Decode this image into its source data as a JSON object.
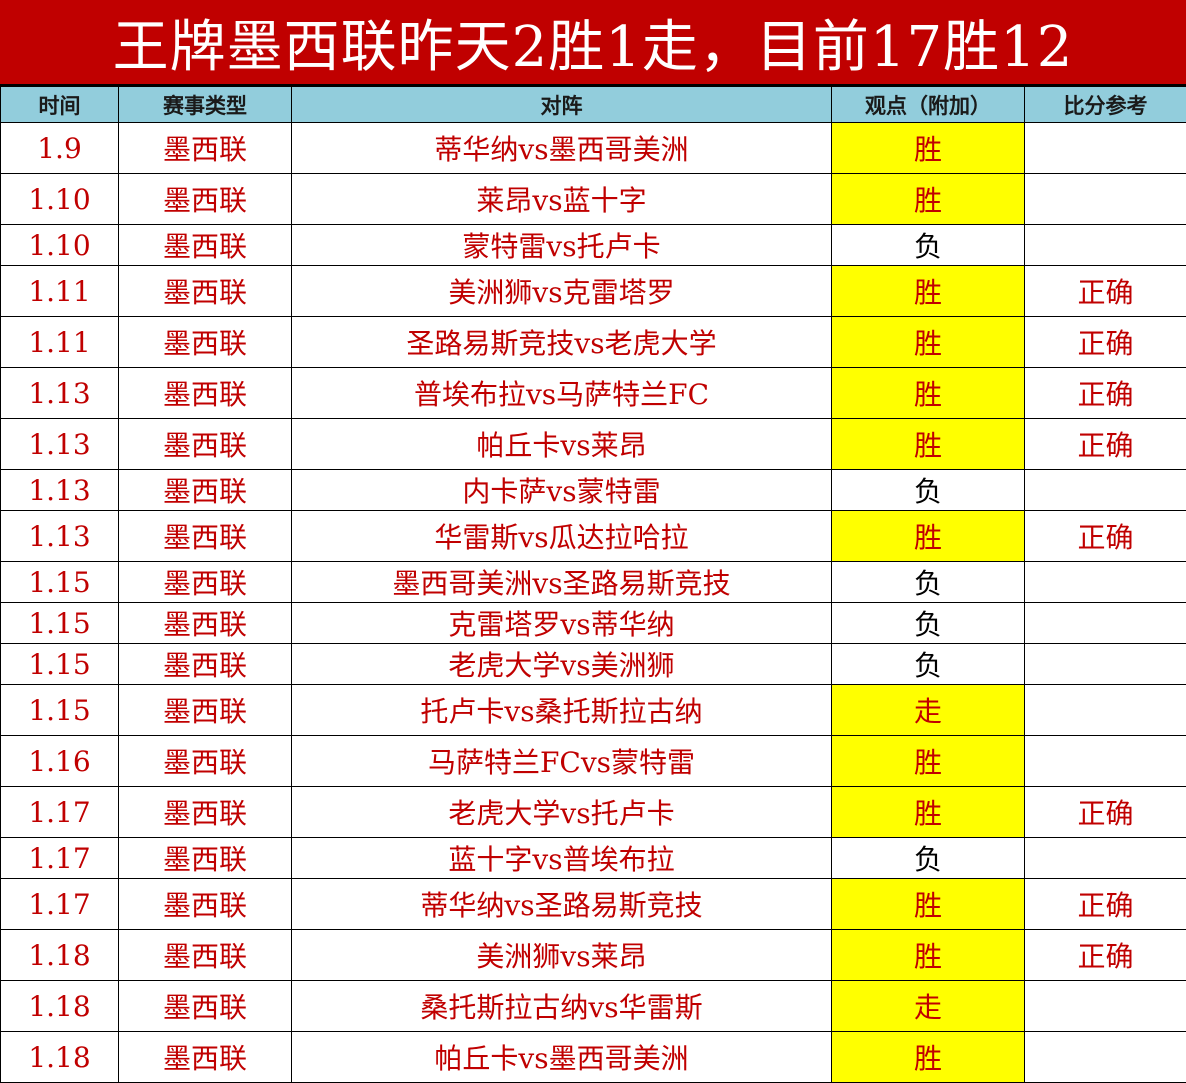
{
  "title": "王牌墨西联昨天2胜1走，目前17胜12",
  "headers": [
    "时间",
    "赛事类型",
    "对阵",
    "观点（附加）",
    "比分参考"
  ],
  "colors": {
    "title_bg": "#c00000",
    "header_bg": "#92cddc",
    "highlight": "#ffff00",
    "text": "#c00000"
  },
  "rows": [
    {
      "date": "1.9",
      "league": "墨西联",
      "match": "蒂华纳vs墨西哥美洲",
      "pick": "胜",
      "ref": ""
    },
    {
      "date": "1.10",
      "league": "墨西联",
      "match": "莱昂vs蓝十字",
      "pick": "胜",
      "ref": ""
    },
    {
      "date": "1.10",
      "league": "墨西联",
      "match": "蒙特雷vs托卢卡",
      "pick": "负",
      "ref": ""
    },
    {
      "date": "1.11",
      "league": "墨西联",
      "match": "美洲狮vs克雷塔罗",
      "pick": "胜",
      "ref": "正确"
    },
    {
      "date": "1.11",
      "league": "墨西联",
      "match": "圣路易斯竞技vs老虎大学",
      "pick": "胜",
      "ref": "正确"
    },
    {
      "date": "1.13",
      "league": "墨西联",
      "match": "普埃布拉vs马萨特兰FC",
      "pick": "胜",
      "ref": "正确"
    },
    {
      "date": "1.13",
      "league": "墨西联",
      "match": "帕丘卡vs莱昂",
      "pick": "胜",
      "ref": "正确"
    },
    {
      "date": "1.13",
      "league": "墨西联",
      "match": "内卡萨vs蒙特雷",
      "pick": "负",
      "ref": ""
    },
    {
      "date": "1.13",
      "league": "墨西联",
      "match": "华雷斯vs瓜达拉哈拉",
      "pick": "胜",
      "ref": "正确"
    },
    {
      "date": "1.15",
      "league": "墨西联",
      "match": "墨西哥美洲vs圣路易斯竞技",
      "pick": "负",
      "ref": ""
    },
    {
      "date": "1.15",
      "league": "墨西联",
      "match": "克雷塔罗vs蒂华纳",
      "pick": "负",
      "ref": ""
    },
    {
      "date": "1.15",
      "league": "墨西联",
      "match": "老虎大学vs美洲狮",
      "pick": "负",
      "ref": ""
    },
    {
      "date": "1.15",
      "league": "墨西联",
      "match": "托卢卡vs桑托斯拉古纳",
      "pick": "走",
      "ref": ""
    },
    {
      "date": "1.16",
      "league": "墨西联",
      "match": "马萨特兰FCvs蒙特雷",
      "pick": "胜",
      "ref": ""
    },
    {
      "date": "1.17",
      "league": "墨西联",
      "match": "老虎大学vs托卢卡",
      "pick": "胜",
      "ref": "正确"
    },
    {
      "date": "1.17",
      "league": "墨西联",
      "match": "蓝十字vs普埃布拉",
      "pick": "负",
      "ref": ""
    },
    {
      "date": "1.17",
      "league": "墨西联",
      "match": "蒂华纳vs圣路易斯竞技",
      "pick": "胜",
      "ref": "正确"
    },
    {
      "date": "1.18",
      "league": "墨西联",
      "match": "美洲狮vs莱昂",
      "pick": "胜",
      "ref": "正确"
    },
    {
      "date": "1.18",
      "league": "墨西联",
      "match": "桑托斯拉古纳vs华雷斯",
      "pick": "走",
      "ref": ""
    },
    {
      "date": "1.18",
      "league": "墨西联",
      "match": "帕丘卡vs墨西哥美洲",
      "pick": "胜",
      "ref": ""
    }
  ]
}
